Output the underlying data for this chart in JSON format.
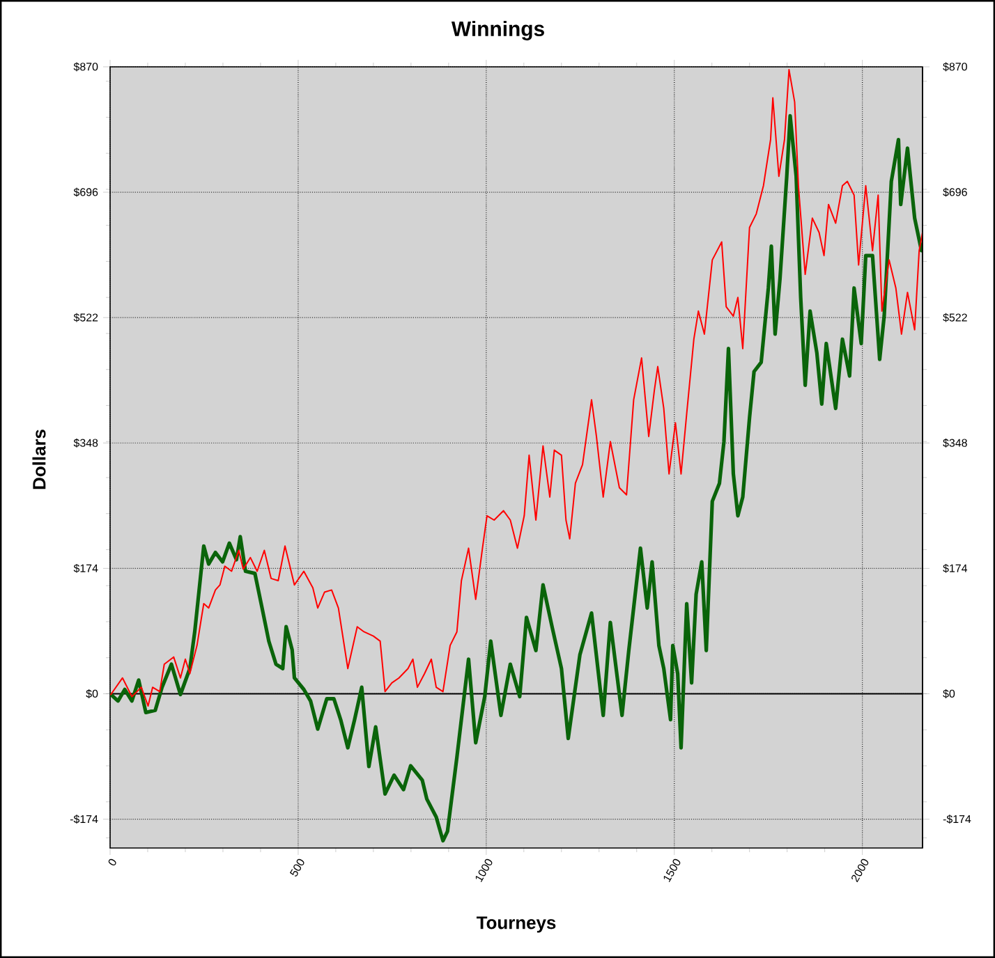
{
  "chart_data": {
    "type": "line",
    "title": "Winnings",
    "xlabel": "Tourneys",
    "ylabel": "Dollars",
    "xlim": [
      0,
      2160
    ],
    "xticks": [
      0,
      500,
      1000,
      1500,
      2000
    ],
    "ylim": [
      -214,
      870
    ],
    "yticks": [
      {
        "value": -174,
        "label": "-$174"
      },
      {
        "value": 0,
        "label": "$0"
      },
      {
        "value": 174,
        "label": "$174"
      },
      {
        "value": 348,
        "label": "$348"
      },
      {
        "value": 522,
        "label": "$522"
      },
      {
        "value": 696,
        "label": "$696"
      },
      {
        "value": 870,
        "label": "$870"
      }
    ],
    "y2lim": [
      -214,
      870
    ],
    "y2ticks": [
      {
        "value": -174,
        "label": "-$174"
      },
      {
        "value": 0,
        "label": "$0"
      },
      {
        "value": 174,
        "label": "$174"
      },
      {
        "value": 348,
        "label": "$348"
      },
      {
        "value": 522,
        "label": "$522"
      },
      {
        "value": 696,
        "label": "$696"
      },
      {
        "value": 870,
        "label": "$870"
      }
    ],
    "grid": true,
    "line_style": "solid",
    "marker": "none",
    "ref_lines": [
      {
        "axis": "y",
        "value": 0,
        "color": "#000000"
      }
    ],
    "series": [
      {
        "color": "#0a640a",
        "x": [
          2,
          21,
          39,
          58,
          76,
          95,
          120,
          138,
          163,
          187,
          212,
          225,
          249,
          262,
          280,
          299,
          317,
          336,
          346,
          360,
          385,
          404,
          422,
          441,
          459,
          468,
          484,
          490,
          515,
          533,
          552,
          576,
          595,
          613,
          632,
          650,
          669,
          688,
          706,
          731,
          755,
          780,
          799,
          830,
          842,
          867,
          885,
          897,
          922,
          953,
          972,
          996,
          1012,
          1039,
          1064,
          1089,
          1107,
          1132,
          1151,
          1175,
          1200,
          1218,
          1249,
          1280,
          1311,
          1330,
          1361,
          1379,
          1410,
          1428,
          1441,
          1459,
          1472,
          1490,
          1496,
          1509,
          1518,
          1533,
          1546,
          1558,
          1573,
          1585,
          1601,
          1620,
          1632,
          1644,
          1657,
          1669,
          1682,
          1700,
          1712,
          1731,
          1750,
          1758,
          1768,
          1781,
          1799,
          1808,
          1824,
          1836,
          1848,
          1861,
          1879,
          1892,
          1904,
          1929,
          1947,
          1966,
          1978,
          1997,
          2009,
          2027,
          2046,
          2058,
          2077,
          2096,
          2102,
          2120,
          2139,
          2157
        ],
        "values": [
          -1,
          -10,
          6,
          -10,
          19,
          -26,
          -23,
          9,
          41,
          -1,
          35,
          86,
          205,
          180,
          196,
          183,
          209,
          186,
          218,
          170,
          167,
          119,
          73,
          41,
          35,
          93,
          61,
          22,
          6,
          -10,
          -49,
          -7,
          -7,
          -36,
          -75,
          -36,
          9,
          -101,
          -46,
          -139,
          -113,
          -133,
          -100,
          -120,
          -146,
          -171,
          -204,
          -191,
          -88,
          48,
          -68,
          -4,
          73,
          -30,
          41,
          -4,
          106,
          60,
          151,
          93,
          35,
          -62,
          54,
          112,
          -30,
          99,
          -30,
          60,
          202,
          119,
          183,
          67,
          35,
          -36,
          67,
          28,
          -75,
          125,
          15,
          138,
          183,
          60,
          267,
          292,
          350,
          479,
          305,
          247,
          273,
          383,
          447,
          460,
          563,
          621,
          499,
          576,
          718,
          802,
          718,
          550,
          428,
          531,
          473,
          402,
          486,
          396,
          492,
          441,
          563,
          486,
          608,
          608,
          464,
          524,
          711,
          769,
          679,
          757,
          660,
          615
        ]
      },
      {
        "color": "#ff0000",
        "x": [
          2,
          33,
          58,
          83,
          101,
          113,
          132,
          144,
          169,
          187,
          200,
          212,
          231,
          243,
          249,
          262,
          280,
          292,
          305,
          323,
          342,
          354,
          373,
          391,
          410,
          428,
          447,
          465,
          478,
          490,
          515,
          539,
          552,
          570,
          589,
          607,
          632,
          657,
          675,
          700,
          718,
          731,
          749,
          768,
          792,
          805,
          817,
          836,
          854,
          867,
          885,
          904,
          922,
          934,
          953,
          972,
          990,
          1002,
          1021,
          1046,
          1064,
          1083,
          1101,
          1114,
          1132,
          1151,
          1169,
          1181,
          1200,
          1212,
          1222,
          1237,
          1256,
          1280,
          1293,
          1311,
          1330,
          1354,
          1373,
          1392,
          1413,
          1432,
          1447,
          1456,
          1472,
          1486,
          1503,
          1518,
          1533,
          1552,
          1564,
          1580,
          1601,
          1626,
          1638,
          1657,
          1669,
          1682,
          1700,
          1718,
          1737,
          1756,
          1762,
          1778,
          1793,
          1805,
          1820,
          1830,
          1848,
          1867,
          1885,
          1898,
          1910,
          1929,
          1947,
          1960,
          1978,
          1990,
          2009,
          2027,
          2042,
          2052,
          2071,
          2089,
          2104,
          2120,
          2139,
          2151,
          2160
        ],
        "values": [
          -1,
          22,
          -4,
          9,
          -17,
          9,
          3,
          41,
          51,
          22,
          48,
          28,
          67,
          106,
          125,
          119,
          144,
          151,
          177,
          170,
          199,
          173,
          189,
          170,
          199,
          160,
          157,
          205,
          177,
          151,
          170,
          147,
          119,
          141,
          144,
          119,
          35,
          93,
          86,
          80,
          73,
          3,
          15,
          22,
          35,
          48,
          9,
          28,
          48,
          9,
          3,
          67,
          86,
          157,
          202,
          131,
          202,
          247,
          241,
          254,
          241,
          202,
          247,
          331,
          241,
          344,
          273,
          338,
          331,
          241,
          215,
          292,
          318,
          408,
          357,
          273,
          350,
          286,
          276,
          408,
          466,
          357,
          421,
          454,
          396,
          305,
          376,
          305,
          389,
          492,
          531,
          499,
          602,
          627,
          537,
          524,
          550,
          479,
          647,
          666,
          705,
          769,
          827,
          718,
          769,
          866,
          821,
          705,
          582,
          660,
          640,
          608,
          679,
          653,
          705,
          711,
          692,
          595,
          705,
          615,
          692,
          531,
          602,
          563,
          499,
          557,
          505,
          615,
          640
        ]
      }
    ]
  }
}
